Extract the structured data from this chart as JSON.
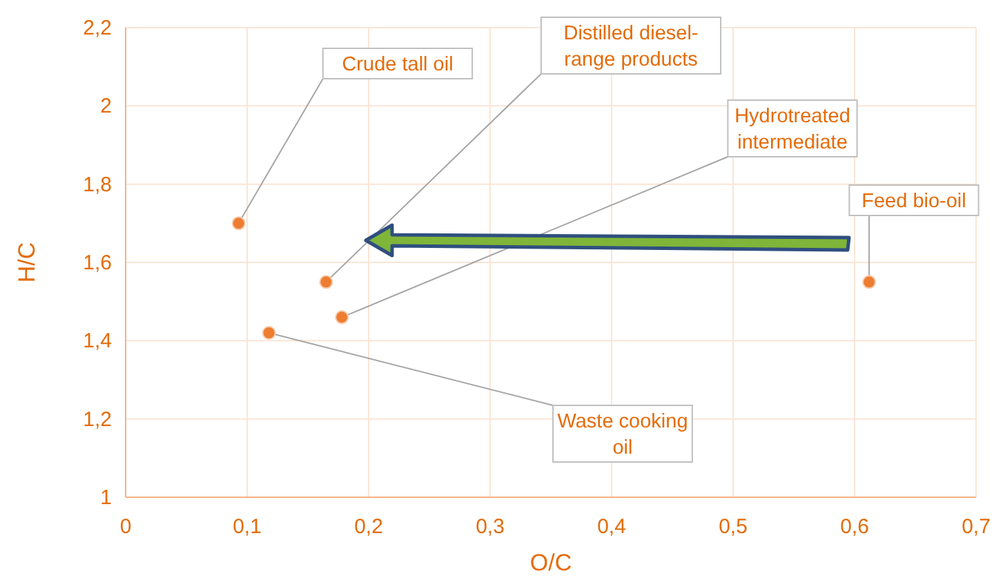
{
  "chart_data": {
    "type": "scatter",
    "xlabel": "O/C",
    "ylabel": "H/C",
    "x": [
      0.093,
      0.165,
      0.178,
      0.612,
      0.118
    ],
    "series": [
      {
        "color": "#ed7d31",
        "values": [
          1.7,
          1.55,
          1.46,
          1.55,
          1.42
        ]
      }
    ],
    "marker": "circle",
    "grid": true,
    "xlim": [
      0,
      0.7
    ],
    "xticks": [
      0,
      {
        "value": 0.1,
        "label": "0,1"
      },
      {
        "value": 0.2,
        "label": "0,2"
      },
      {
        "value": 0.3,
        "label": "0,3"
      },
      {
        "value": 0.4,
        "label": "0,4"
      },
      {
        "value": 0.5,
        "label": "0,5"
      },
      {
        "value": 0.6,
        "label": "0,6"
      },
      {
        "value": 0.7,
        "label": "0,7"
      }
    ],
    "ylim": [
      1,
      2.2
    ],
    "yticks": [
      1,
      {
        "value": 1.2,
        "label": "1,2"
      },
      {
        "value": 1.4,
        "label": "1,4"
      },
      {
        "value": 1.6,
        "label": "1,6"
      },
      {
        "value": 1.8,
        "label": "1,8"
      },
      2,
      {
        "value": 2.2,
        "label": "2,2"
      }
    ],
    "annotations": [
      {
        "text": "Crude tall oil",
        "x": 0.093,
        "y": 1.7
      },
      {
        "text": "Distilled diesel-range products",
        "x": 0.165,
        "y": 1.55
      },
      {
        "text": "Hydrotreated intermediate",
        "x": 0.178,
        "y": 1.46
      },
      {
        "text": "Feed bio-oil",
        "x": 0.612,
        "y": 1.55
      },
      {
        "text": "Waste cooking oil",
        "x": 0.118,
        "y": 1.42
      }
    ]
  }
}
